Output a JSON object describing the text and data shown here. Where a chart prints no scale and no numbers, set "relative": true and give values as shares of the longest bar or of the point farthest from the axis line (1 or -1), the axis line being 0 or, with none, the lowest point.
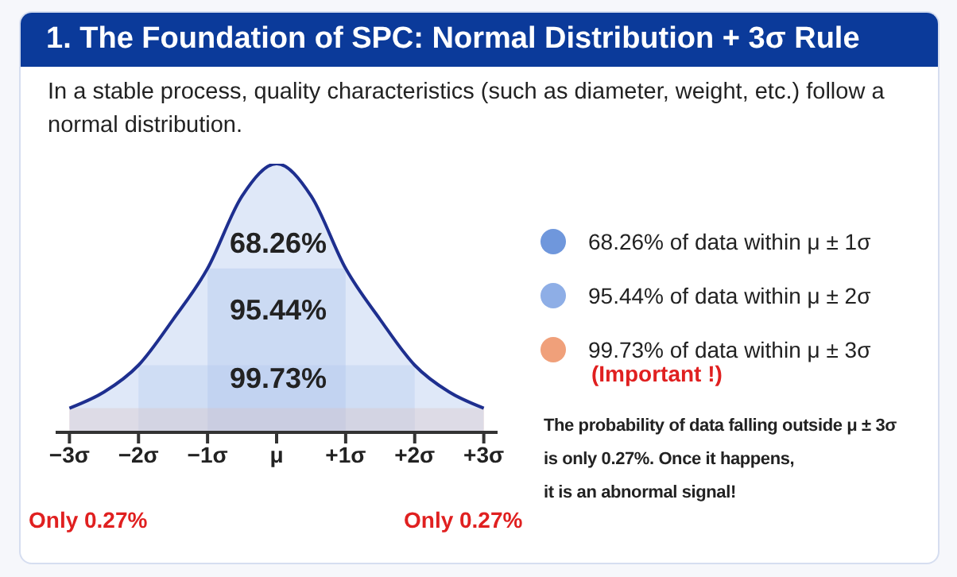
{
  "chart_data": {
    "type": "area",
    "title": "1. The Foundation of SPC: Normal Distribution + 3σ Rule",
    "subtitle": "In a stable process, quality characteristics (such as diameter, weight, etc.) follow a normal distribution.",
    "relative": true,
    "x": [
      -3,
      -2.5,
      -2,
      -1.5,
      -1,
      -0.5,
      0,
      0.5,
      1,
      1.5,
      2,
      2.5,
      3
    ],
    "series": [
      {
        "color": "#1e2f8f",
        "values": [
          0.09,
          0.15,
          0.25,
          0.42,
          0.61,
          0.88,
          1,
          0.88,
          0.61,
          0.42,
          0.25,
          0.15,
          0.09
        ]
      }
    ],
    "xlim": [
      -3.2,
      3.2
    ],
    "xticks": [
      {
        "value": -3,
        "label": "−3σ"
      },
      {
        "value": -2,
        "label": "−2σ"
      },
      {
        "value": -1,
        "label": "−1σ"
      },
      {
        "value": 0,
        "label": "μ"
      },
      {
        "value": 1,
        "label": "+1σ"
      },
      {
        "value": 2,
        "label": "+2σ"
      },
      {
        "value": 3,
        "label": "+3σ"
      }
    ],
    "bands": [
      {
        "axis": "x",
        "from": -3,
        "to": 3,
        "label": "99.73% of data within μ ± 3σ",
        "color": "#f0a07a"
      },
      {
        "axis": "x",
        "from": -2,
        "to": 2,
        "label": "95.44% of data within μ ± 2σ",
        "color": "#8eaee6"
      },
      {
        "axis": "x",
        "from": -1,
        "to": 1,
        "label": "68.26% of data within μ ± 1σ",
        "color": "#6f97dc"
      }
    ],
    "legend": "right",
    "annotations": [
      "68.26%",
      "95.44%",
      "99.73%",
      "(Important !)",
      "The probability of data falling outside μ ± 3σ\nis only 0.27%. Once it happens,\nit is an abnormal signal!",
      "Only 0.27%",
      "Only 0.27%"
    ]
  }
}
